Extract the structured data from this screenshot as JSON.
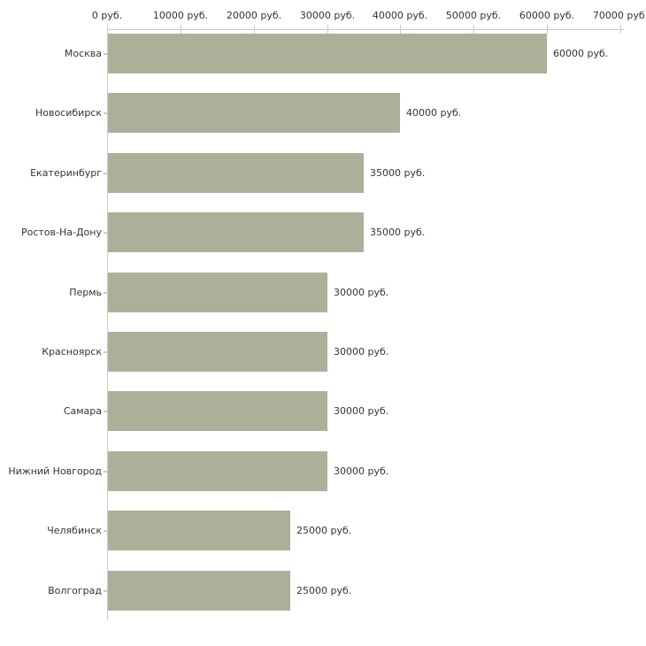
{
  "chart_data": {
    "type": "bar",
    "orientation": "horizontal",
    "title": "",
    "categories": [
      "Москва",
      "Новосибирск",
      "Екатеринбург",
      "Ростов-На-Дону",
      "Пермь",
      "Красноярск",
      "Самара",
      "Нижний Новгород",
      "Челябинск",
      "Волгоград"
    ],
    "values": [
      60000,
      40000,
      35000,
      35000,
      30000,
      30000,
      30000,
      30000,
      25000,
      25000
    ],
    "value_labels": [
      "60000 руб.",
      "40000 руб.",
      "35000 руб.",
      "35000 руб.",
      "30000 руб.",
      "30000 руб.",
      "30000 руб.",
      "30000 руб.",
      "25000 руб.",
      "25000 руб."
    ],
    "x_axis": {
      "position": "top",
      "min": 0,
      "max": 70000,
      "tick_values": [
        0,
        10000,
        20000,
        30000,
        40000,
        50000,
        60000,
        70000
      ],
      "tick_labels": [
        "0 руб.",
        "10000 руб.",
        "20000 руб.",
        "30000 руб.",
        "40000 руб.",
        "50000 руб.",
        "60000 руб.",
        "70000 руб."
      ]
    },
    "grid": false,
    "legend": false,
    "colors": {
      "bar": "#abb199",
      "axis_line": "#c9c9c9",
      "tick": "#cfcfa5",
      "text": "#333333",
      "background": "#ffffff"
    }
  }
}
